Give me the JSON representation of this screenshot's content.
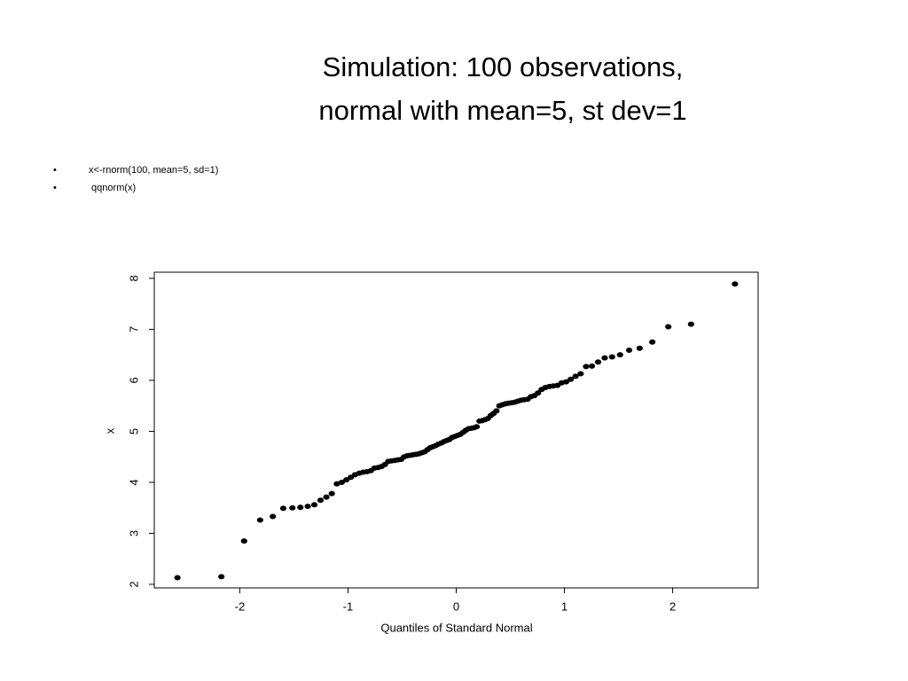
{
  "slide": {
    "title_lines": [
      "Simulation:  100 observations,",
      "normal with mean=5, st dev=1"
    ],
    "bullets": [
      "x<-rnorm(100, mean=5, sd=1)",
      " qqnorm(x)"
    ]
  },
  "chart_data": {
    "type": "scatter",
    "xlabel": "Quantiles of Standard Normal",
    "ylabel": "x",
    "color": "#000000",
    "x": [
      -2.576,
      -2.17,
      -1.96,
      -1.812,
      -1.695,
      -1.598,
      -1.514,
      -1.44,
      -1.372,
      -1.311,
      -1.254,
      -1.2,
      -1.15,
      -1.103,
      -1.058,
      -1.015,
      -0.974,
      -0.935,
      -0.896,
      -0.86,
      -0.824,
      -0.789,
      -0.755,
      -0.722,
      -0.69,
      -0.659,
      -0.628,
      -0.598,
      -0.568,
      -0.539,
      -0.51,
      -0.482,
      -0.454,
      -0.426,
      -0.399,
      -0.372,
      -0.345,
      -0.319,
      -0.292,
      -0.266,
      -0.24,
      -0.215,
      -0.189,
      -0.164,
      -0.138,
      -0.113,
      -0.088,
      -0.063,
      -0.038,
      -0.013,
      0.013,
      0.038,
      0.063,
      0.088,
      0.113,
      0.138,
      0.164,
      0.189,
      0.215,
      0.24,
      0.266,
      0.292,
      0.319,
      0.345,
      0.372,
      0.399,
      0.426,
      0.454,
      0.482,
      0.51,
      0.539,
      0.568,
      0.598,
      0.628,
      0.659,
      0.69,
      0.722,
      0.755,
      0.789,
      0.824,
      0.86,
      0.896,
      0.935,
      0.974,
      1.015,
      1.058,
      1.103,
      1.15,
      1.2,
      1.254,
      1.311,
      1.372,
      1.44,
      1.514,
      1.598,
      1.695,
      1.812,
      1.96,
      2.17,
      2.576
    ],
    "values": [
      2.13,
      2.15,
      2.85,
      3.26,
      3.33,
      3.49,
      3.5,
      3.51,
      3.53,
      3.56,
      3.65,
      3.71,
      3.78,
      3.97,
      4.0,
      4.05,
      4.1,
      4.15,
      4.18,
      4.2,
      4.21,
      4.23,
      4.28,
      4.29,
      4.31,
      4.35,
      4.41,
      4.42,
      4.43,
      4.44,
      4.45,
      4.5,
      4.52,
      4.53,
      4.54,
      4.55,
      4.56,
      4.58,
      4.6,
      4.64,
      4.68,
      4.7,
      4.72,
      4.75,
      4.77,
      4.8,
      4.82,
      4.84,
      4.88,
      4.9,
      4.92,
      4.94,
      4.98,
      5.02,
      5.05,
      5.06,
      5.07,
      5.09,
      5.2,
      5.21,
      5.23,
      5.25,
      5.31,
      5.35,
      5.4,
      5.5,
      5.52,
      5.54,
      5.55,
      5.56,
      5.57,
      5.59,
      5.61,
      5.62,
      5.63,
      5.68,
      5.7,
      5.75,
      5.82,
      5.86,
      5.88,
      5.89,
      5.9,
      5.95,
      5.97,
      6.02,
      6.08,
      6.13,
      6.27,
      6.28,
      6.36,
      6.44,
      6.46,
      6.5,
      6.59,
      6.63,
      6.75,
      7.05,
      7.1,
      7.89
    ],
    "xlim": [
      -2.79,
      2.79
    ],
    "xticks": [
      -2,
      -1,
      0,
      1,
      2
    ],
    "ylim": [
      1.93,
      8.12
    ],
    "yticks": [
      2,
      3,
      4,
      5,
      6,
      7,
      8
    ]
  }
}
